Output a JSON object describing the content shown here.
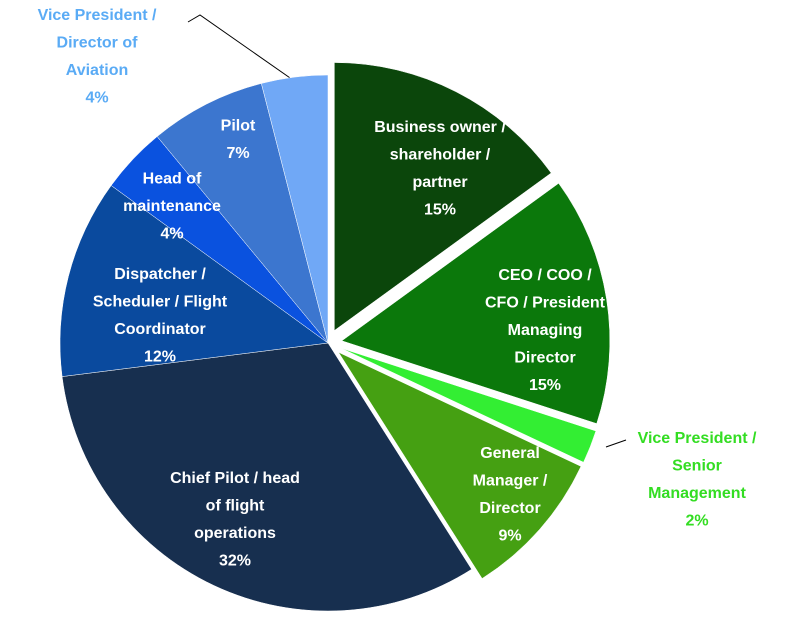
{
  "chart_data": {
    "type": "pie",
    "categories": [
      "Business owner /\nshareholder /\npartner",
      "CEO / COO /\nCFO / President\nManaging\nDirector",
      "Vice President /\nSenior\nManagement",
      "General\nManager /\nDirector",
      "Chief Pilot / head\nof flight\noperations",
      "Dispatcher /\nScheduler / Flight\nCoordinator",
      "Head of\nmaintenance",
      "Pilot",
      "Vice President /\nDirector of\nAviation"
    ],
    "values": [
      15,
      15,
      2,
      9,
      32,
      12,
      4,
      7,
      4
    ],
    "value_labels": [
      "15%",
      "15%",
      "2%",
      "9%",
      "32%",
      "12%",
      "4%",
      "7%",
      "4%"
    ],
    "colors": [
      "#0b460b",
      "#0b780b",
      "#33ee33",
      "#45a012",
      "#172f4f",
      "#0a4a9e",
      "#0a52df",
      "#3c76cf",
      "#70a8f6"
    ]
  }
}
